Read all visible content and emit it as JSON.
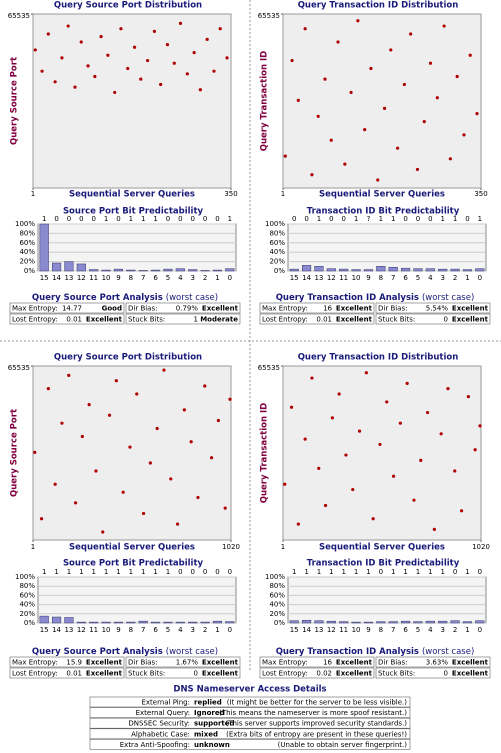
{
  "chart_data": [
    {
      "type": "scatter",
      "title": "Query Source Port Distribution",
      "x_label": "Sequential Server Queries",
      "y_label": "Query Source Port",
      "color": "#b00000",
      "x": [
        5,
        17,
        28,
        40,
        52,
        63,
        75,
        86,
        98,
        110,
        121,
        133,
        145,
        156,
        168,
        180,
        191,
        203,
        215,
        226,
        238,
        250,
        261,
        273,
        285,
        296,
        308,
        320,
        331,
        343
      ],
      "y": [
        52000,
        44000,
        58000,
        40000,
        49000,
        61000,
        38000,
        55000,
        46000,
        42000,
        57000,
        50000,
        36000,
        60000,
        45000,
        53000,
        41000,
        48000,
        59000,
        39000,
        54000,
        47000,
        62000,
        43000,
        51000,
        37000,
        56000,
        44000,
        60000,
        49000
      ],
      "xlim": [
        1,
        350
      ],
      "ylim": [
        0,
        65535
      ],
      "xticks": [
        1,
        350
      ],
      "yticks": [
        65535
      ]
    },
    {
      "type": "bar",
      "title": "Source Port Bit Predictability",
      "categories": [
        "15",
        "14",
        "13",
        "12",
        "11",
        "10",
        "9",
        "8",
        "7",
        "6",
        "5",
        "4",
        "3",
        "2",
        "1",
        "0"
      ],
      "bit_labels": [
        "1",
        "0",
        "0",
        "0",
        "0",
        "1",
        "0",
        "1",
        "1",
        "1",
        "0",
        "0",
        "0",
        "0",
        "0",
        "1"
      ],
      "values": [
        100,
        17,
        20,
        15,
        3,
        2,
        4,
        2,
        1,
        2,
        4,
        5,
        3,
        1,
        2,
        5
      ],
      "color": "#8a8ad0",
      "grid": true,
      "ylim": [
        0,
        100
      ],
      "yticks": [
        {
          "value": 0,
          "label": "0%"
        },
        {
          "value": 20,
          "label": "20%"
        },
        {
          "value": 40,
          "label": "40%"
        },
        {
          "value": 60,
          "label": "60%"
        },
        {
          "value": 80,
          "label": "80%"
        },
        {
          "value": 100,
          "label": "100%"
        }
      ]
    },
    {
      "type": "scatter",
      "title": "Query Transaction ID Distribution",
      "x_label": "Sequential Server Queries",
      "y_label": "Query Transaction ID",
      "color": "#b00000",
      "x": [
        5,
        17,
        28,
        40,
        52,
        63,
        75,
        86,
        98,
        110,
        121,
        133,
        145,
        156,
        168,
        180,
        191,
        203,
        215,
        226,
        238,
        250,
        261,
        273,
        285,
        296,
        308,
        320,
        331,
        343
      ],
      "y": [
        12000,
        48000,
        33000,
        60000,
        5000,
        27000,
        41000,
        18000,
        55000,
        9000,
        36000,
        63000,
        22000,
        45000,
        3000,
        30000,
        52000,
        15000,
        39000,
        58000,
        7000,
        25000,
        47000,
        34000,
        61000,
        11000,
        42000,
        20000,
        50000,
        28000
      ],
      "xlim": [
        1,
        350
      ],
      "ylim": [
        0,
        65535
      ],
      "xticks": [
        1,
        350
      ],
      "yticks": [
        65535
      ]
    },
    {
      "type": "bar",
      "title": "Transaction ID Bit Predictability",
      "categories": [
        "15",
        "14",
        "13",
        "12",
        "11",
        "10",
        "9",
        "8",
        "7",
        "6",
        "5",
        "4",
        "3",
        "2",
        "1",
        "0"
      ],
      "bit_labels": [
        "0",
        "0",
        "1",
        "0",
        "0",
        "1",
        "?",
        "1",
        "1",
        "0",
        "0",
        "0",
        "1",
        "1",
        "0",
        "1"
      ],
      "values": [
        4,
        12,
        10,
        5,
        4,
        3,
        3,
        10,
        8,
        6,
        5,
        5,
        4,
        4,
        3,
        5
      ],
      "color": "#8a8ad0",
      "grid": true,
      "ylim": [
        0,
        100
      ],
      "yticks": [
        {
          "value": 0,
          "label": "0%"
        },
        {
          "value": 20,
          "label": "20%"
        },
        {
          "value": 40,
          "label": "40%"
        },
        {
          "value": 60,
          "label": "60%"
        },
        {
          "value": 80,
          "label": "80%"
        },
        {
          "value": 100,
          "label": "100%"
        }
      ]
    },
    {
      "type": "scatter",
      "title": "Query Source Port Distribution",
      "x_label": "Sequential Server Queries",
      "y_label": "Query Source Port",
      "color": "#b00000",
      "x": [
        10,
        45,
        80,
        115,
        150,
        185,
        220,
        255,
        290,
        325,
        360,
        395,
        430,
        465,
        500,
        535,
        570,
        605,
        640,
        675,
        710,
        745,
        780,
        815,
        850,
        885,
        920,
        955,
        990,
        1015
      ],
      "y": [
        33000,
        8000,
        57000,
        21000,
        44000,
        62000,
        14000,
        39000,
        51000,
        26000,
        3000,
        47000,
        60000,
        18000,
        35000,
        55000,
        10000,
        29000,
        42000,
        64000,
        23000,
        6000,
        49000,
        37000,
        16000,
        58000,
        31000,
        45000,
        12000,
        53000
      ],
      "xlim": [
        1,
        1020
      ],
      "ylim": [
        0,
        65535
      ],
      "xticks": [
        1,
        1020
      ],
      "yticks": [
        65535
      ]
    },
    {
      "type": "bar",
      "title": "Source Port Bit Predictability",
      "categories": [
        "15",
        "14",
        "13",
        "12",
        "11",
        "10",
        "9",
        "8",
        "7",
        "6",
        "5",
        "4",
        "3",
        "2",
        "1",
        "0"
      ],
      "bit_labels": [
        "1",
        "1",
        "1",
        "1",
        "1",
        "1",
        "1",
        "1",
        "1",
        "1",
        "1",
        "0",
        "0",
        "0",
        "0",
        "0"
      ],
      "values": [
        15,
        13,
        12,
        2,
        2,
        2,
        2,
        2,
        4,
        2,
        2,
        2,
        2,
        2,
        4,
        3
      ],
      "color": "#8a8ad0",
      "grid": true,
      "ylim": [
        0,
        100
      ],
      "yticks": [
        {
          "value": 0,
          "label": "0%"
        },
        {
          "value": 20,
          "label": "20%"
        },
        {
          "value": 40,
          "label": "40%"
        },
        {
          "value": 60,
          "label": "60%"
        },
        {
          "value": 80,
          "label": "80%"
        },
        {
          "value": 100,
          "label": "100%"
        }
      ]
    },
    {
      "type": "scatter",
      "title": "Query Transaction ID Distribution",
      "x_label": "Sequential Server Queries",
      "y_label": "Query Transaction ID",
      "color": "#b00000",
      "x": [
        10,
        45,
        80,
        115,
        150,
        185,
        220,
        255,
        290,
        325,
        360,
        395,
        430,
        465,
        500,
        535,
        570,
        605,
        640,
        675,
        710,
        745,
        780,
        815,
        850,
        885,
        920,
        955,
        990,
        1015
      ],
      "y": [
        21000,
        50000,
        6000,
        38000,
        61000,
        27000,
        13000,
        46000,
        55000,
        32000,
        19000,
        41000,
        63000,
        8000,
        36000,
        52000,
        24000,
        44000,
        59000,
        15000,
        30000,
        48000,
        4000,
        40000,
        57000,
        26000,
        11000,
        54000,
        34000,
        43000
      ],
      "xlim": [
        1,
        1020
      ],
      "ylim": [
        0,
        65535
      ],
      "xticks": [
        1,
        1020
      ],
      "yticks": [
        65535
      ]
    },
    {
      "type": "bar",
      "title": "Transaction ID Bit Predictability",
      "categories": [
        "15",
        "14",
        "13",
        "12",
        "11",
        "10",
        "9",
        "8",
        "7",
        "6",
        "5",
        "4",
        "3",
        "2",
        "1",
        "0"
      ],
      "bit_labels": [
        "1",
        "1",
        "1",
        "1",
        "1",
        "1",
        "1",
        "0",
        "1",
        "1",
        "1",
        "1",
        "1",
        "0",
        "1",
        "0"
      ],
      "values": [
        5,
        6,
        5,
        4,
        3,
        2,
        2,
        3,
        3,
        4,
        3,
        4,
        4,
        5,
        3,
        5
      ],
      "color": "#8a8ad0",
      "grid": true,
      "ylim": [
        0,
        100
      ],
      "yticks": [
        {
          "value": 0,
          "label": "0%"
        },
        {
          "value": 20,
          "label": "20%"
        },
        {
          "value": 40,
          "label": "40%"
        },
        {
          "value": 60,
          "label": "60%"
        },
        {
          "value": 80,
          "label": "80%"
        },
        {
          "value": 100,
          "label": "100%"
        }
      ]
    }
  ],
  "analyses": [
    {
      "title": "Query Source Port Analysis",
      "subtitle": "(worst case)",
      "rows": [
        [
          {
            "label": "Max Entropy:",
            "value": "14.77",
            "rating": "Good",
            "color": "#c08000"
          },
          {
            "label": "Dir Bias:",
            "value": "0.79%",
            "rating": "Excellent",
            "color": "#008000"
          }
        ],
        [
          {
            "label": "Lost Entropy:",
            "value": "0.01",
            "rating": "Excellent",
            "color": "#008000"
          },
          {
            "label": "Stuck Bits:",
            "value": "1",
            "rating": "Moderate",
            "color": "#c08000"
          }
        ]
      ]
    },
    {
      "title": "Query Transaction ID Analysis",
      "subtitle": "(worst case)",
      "rows": [
        [
          {
            "label": "Max Entropy:",
            "value": "16",
            "rating": "Excellent",
            "color": "#008000"
          },
          {
            "label": "Dir Bias:",
            "value": "5.54%",
            "rating": "Excellent",
            "color": "#008000"
          }
        ],
        [
          {
            "label": "Lost Entropy:",
            "value": "0.01",
            "rating": "Excellent",
            "color": "#008000"
          },
          {
            "label": "Stuck Bits:",
            "value": "0",
            "rating": "Excellent",
            "color": "#008000"
          }
        ]
      ]
    },
    {
      "title": "Query Source Port Analysis",
      "subtitle": "(worst case)",
      "rows": [
        [
          {
            "label": "Max Entropy:",
            "value": "15.9",
            "rating": "Excellent",
            "color": "#008000"
          },
          {
            "label": "Dir Bias:",
            "value": "1.67%",
            "rating": "Excellent",
            "color": "#008000"
          }
        ],
        [
          {
            "label": "Lost Entropy:",
            "value": "0.01",
            "rating": "Excellent",
            "color": "#008000"
          },
          {
            "label": "Stuck Bits:",
            "value": "0",
            "rating": "Excellent",
            "color": "#008000"
          }
        ]
      ]
    },
    {
      "title": "Query Transaction ID Analysis",
      "subtitle": "(worst case)",
      "rows": [
        [
          {
            "label": "Max Entropy:",
            "value": "16",
            "rating": "Excellent",
            "color": "#008000"
          },
          {
            "label": "Dir Bias:",
            "value": "3.63%",
            "rating": "Excellent",
            "color": "#008000"
          }
        ],
        [
          {
            "label": "Lost Entropy:",
            "value": "0.02",
            "rating": "Excellent",
            "color": "#008000"
          },
          {
            "label": "Stuck Bits:",
            "value": "0",
            "rating": "Excellent",
            "color": "#008000"
          }
        ]
      ]
    }
  ],
  "access_details": {
    "title": "DNS Nameserver Access Details",
    "rows": [
      {
        "label": "External Ping:",
        "value": "replied",
        "color": "#d00000",
        "note": "(It might be better for the server to be less visible.)"
      },
      {
        "label": "External Query:",
        "value": "Ignored",
        "color": "#008000",
        "note": "(This means the nameserver is more spoof resistant.)"
      },
      {
        "label": "DNSSEC Security:",
        "value": "supported",
        "color": "#008000",
        "note": "(This server supports improved security standards.)"
      },
      {
        "label": "Alphabetic Case:",
        "value": "mixed",
        "color": "#008000",
        "note": "(Extra bits of entropy are present in these queries!)"
      },
      {
        "label": "Extra Anti-Spoofing:",
        "value": "unknown",
        "color": "#0000c0",
        "note": "(Unable to obtain server fingerprint.)"
      }
    ]
  }
}
